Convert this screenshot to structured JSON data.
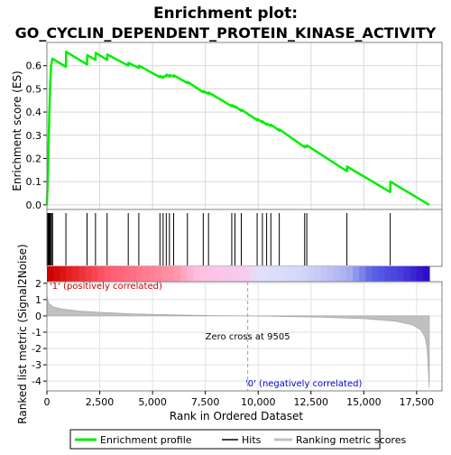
{
  "chart_data": {
    "type": "line",
    "title": "Enrichment plot:",
    "subtitle": "GO_CYCLIN_DEPENDENT_PROTEIN_KINASE_ACTIVITY",
    "x_range": [
      0,
      18700
    ],
    "x_ticks": [
      0,
      2500,
      5000,
      7500,
      10000,
      12500,
      15000,
      17500
    ],
    "x_tick_labels": [
      "0",
      "2,500",
      "5,000",
      "7,500",
      "10,000",
      "12,500",
      "15,000",
      "17,500"
    ],
    "xlabel": "Rank in Ordered Dataset",
    "es_panel": {
      "ylabel": "Enrichment score (ES)",
      "ylim": [
        -0.02,
        0.7
      ],
      "y_ticks": [
        0.0,
        0.1,
        0.2,
        0.3,
        0.4,
        0.5,
        0.6
      ],
      "y_tick_labels": [
        "0.0",
        "0.1",
        "0.2",
        "0.3",
        "0.4",
        "0.5",
        "0.6"
      ],
      "grid": true,
      "series": [
        {
          "name": "Enrichment profile",
          "color": "#00ee00",
          "x": [
            0,
            30,
            60,
            90,
            120,
            160,
            200,
            260,
            900,
            910,
            1900,
            1910,
            2300,
            2310,
            2850,
            2860,
            3850,
            3860,
            4350,
            4360,
            5350,
            5360,
            5500,
            5510,
            5650,
            5660,
            5800,
            5810,
            6000,
            6010,
            6650,
            6660,
            7400,
            7410,
            7650,
            7660,
            8750,
            8760,
            8900,
            8910,
            9200,
            9210,
            9950,
            9960,
            10200,
            10210,
            10400,
            10410,
            10600,
            10610,
            11000,
            11010,
            12200,
            12210,
            12300,
            12310,
            14200,
            14210,
            16250,
            16260,
            18100
          ],
          "y": [
            0.0,
            0.08,
            0.17,
            0.3,
            0.41,
            0.52,
            0.6,
            0.63,
            0.595,
            0.66,
            0.605,
            0.645,
            0.625,
            0.655,
            0.625,
            0.648,
            0.6,
            0.612,
            0.59,
            0.6,
            0.55,
            0.556,
            0.547,
            0.553,
            0.555,
            0.561,
            0.553,
            0.559,
            0.553,
            0.558,
            0.525,
            0.53,
            0.485,
            0.49,
            0.478,
            0.484,
            0.425,
            0.43,
            0.42,
            0.425,
            0.405,
            0.41,
            0.365,
            0.37,
            0.355,
            0.36,
            0.345,
            0.35,
            0.34,
            0.345,
            0.32,
            0.325,
            0.248,
            0.254,
            0.25,
            0.256,
            0.145,
            0.165,
            0.055,
            0.1,
            0.0
          ]
        }
      ]
    },
    "hits": [
      40,
      70,
      100,
      130,
      170,
      220,
      270,
      900,
      1900,
      2300,
      2850,
      3850,
      4350,
      5350,
      5500,
      5650,
      5800,
      6000,
      6650,
      7400,
      7650,
      8750,
      8900,
      9200,
      9950,
      10200,
      10400,
      10600,
      11000,
      12200,
      12300,
      14200,
      16250
    ],
    "rank_panel": {
      "ylabel": "Ranked list metric (Signal2Noise)",
      "ylim": [
        -4.6,
        2.1
      ],
      "y_ticks": [
        2,
        1,
        0,
        -1,
        -2,
        -3,
        -4
      ],
      "y_tick_labels": [
        "2",
        "1",
        "0",
        "-1",
        "-2",
        "-3",
        "-4"
      ],
      "zero_cross_label": "Zero cross at 9505",
      "zero_cross": 9505,
      "positive_label": "'1' (positively correlated)",
      "negative_label": "'0' (negatively correlated)",
      "dataset_size": 18100,
      "metric_profile": {
        "x": [
          0,
          30,
          100,
          300,
          700,
          1500,
          2500,
          4000,
          6000,
          8000,
          9505,
          11000,
          13000,
          15000,
          16500,
          17300,
          17700,
          17900,
          18000,
          18050,
          18100
        ],
        "y": [
          1.3,
          1.0,
          0.75,
          0.55,
          0.42,
          0.3,
          0.22,
          0.13,
          0.06,
          0.02,
          0.0,
          -0.03,
          -0.08,
          -0.17,
          -0.32,
          -0.55,
          -0.85,
          -1.3,
          -2.0,
          -3.2,
          -4.4
        ]
      }
    },
    "legend": {
      "placement": "bottom",
      "entries": [
        {
          "label": "Enrichment profile",
          "color": "#00ee00"
        },
        {
          "label": "Hits",
          "color": "#000000"
        },
        {
          "label": "Ranking metric scores",
          "color": "#c0c0c0"
        }
      ]
    }
  }
}
